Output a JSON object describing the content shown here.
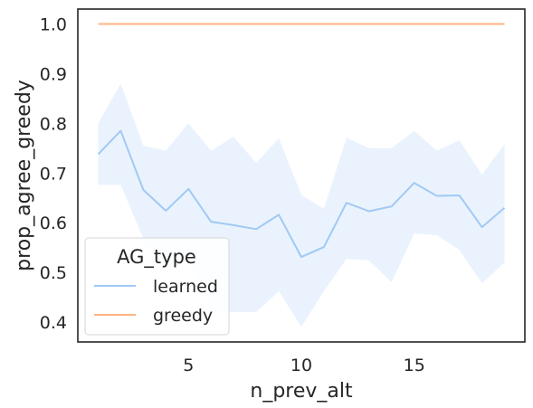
{
  "chart_data": {
    "type": "line",
    "xlabel": "n_prev_alt",
    "ylabel": "prop_agree_greedy",
    "xlim": [
      0.1,
      19.9
    ],
    "ylim": [
      0.36,
      1.03
    ],
    "xticks": [
      5,
      10,
      15
    ],
    "yticks": [
      0.4,
      0.5,
      0.6,
      0.7,
      0.8,
      0.9,
      1.0
    ],
    "ytick_labels": [
      "0.4",
      "0.5",
      "0.6",
      "0.7",
      "0.8",
      "0.9",
      "1.0"
    ],
    "grid": false,
    "legend": {
      "title": "AG_type",
      "placement": "lower-left"
    },
    "x": [
      1,
      2,
      3,
      4,
      5,
      6,
      7,
      8,
      9,
      10,
      11,
      12,
      13,
      14,
      15,
      16,
      17,
      18,
      19
    ],
    "series": [
      {
        "name": "learned",
        "color": "#a1c9f4",
        "values": [
          0.738,
          0.785,
          0.666,
          0.624,
          0.668,
          0.602,
          0.595,
          0.587,
          0.616,
          0.531,
          0.551,
          0.64,
          0.623,
          0.633,
          0.68,
          0.654,
          0.655,
          0.591,
          0.63
        ],
        "ci_low": [
          0.676,
          0.676,
          0.568,
          0.5,
          0.535,
          0.42,
          0.42,
          0.42,
          0.462,
          0.39,
          0.462,
          0.527,
          0.524,
          0.48,
          0.578,
          0.575,
          0.545,
          0.478,
          0.52
        ],
        "ci_high": [
          0.8,
          0.88,
          0.755,
          0.745,
          0.8,
          0.745,
          0.773,
          0.72,
          0.77,
          0.656,
          0.628,
          0.771,
          0.75,
          0.75,
          0.785,
          0.745,
          0.766,
          0.697,
          0.758
        ]
      },
      {
        "name": "greedy",
        "color": "#ffb482",
        "values": [
          1,
          1,
          1,
          1,
          1,
          1,
          1,
          1,
          1,
          1,
          1,
          1,
          1,
          1,
          1,
          1,
          1,
          1,
          1
        ]
      }
    ]
  }
}
